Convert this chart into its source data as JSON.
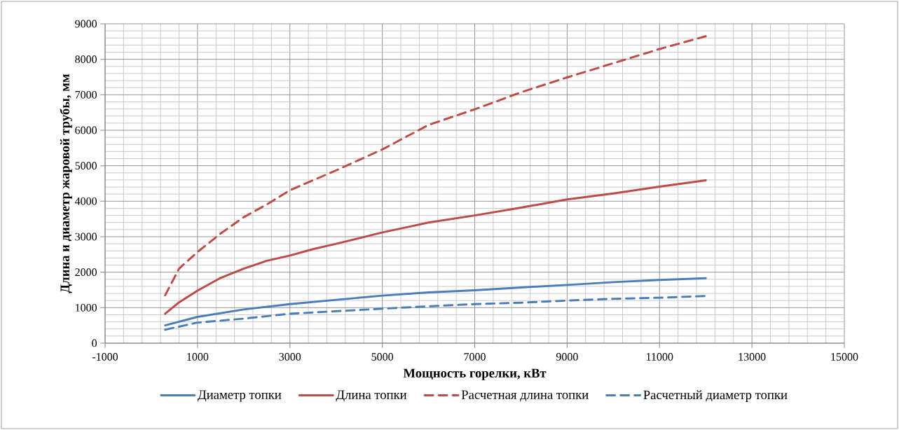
{
  "chart_data": {
    "type": "line",
    "xlabel": "Мощность горелки, кВт",
    "ylabel": "Длина и диаметр  жаровой трубы, мм",
    "x": [
      300,
      1000,
      2000,
      3000,
      4000,
      5000,
      6000,
      7000,
      8000,
      9000,
      10000,
      11000,
      12000
    ],
    "series": [
      {
        "name": "Диаметр топки",
        "color": "#4a7ebb",
        "line_style": "solid",
        "values": [
          500,
          740,
          950,
          1100,
          1220,
          1340,
          1430,
          1490,
          1570,
          1640,
          1720,
          1780,
          1830
        ]
      },
      {
        "name": "Длина топки",
        "color": "#be4b48",
        "line_style": "solid",
        "x": [
          300,
          600,
          1000,
          1500,
          2000,
          2500,
          3000,
          3500,
          4000,
          5000,
          5500,
          6000,
          7000,
          8000,
          9000,
          10000,
          11000,
          12000
        ],
        "values": [
          830,
          1150,
          1480,
          1840,
          2100,
          2320,
          2470,
          2650,
          2800,
          3120,
          3260,
          3400,
          3600,
          3820,
          4050,
          4220,
          4410,
          4590
        ]
      },
      {
        "name": "Расчетная длина топки",
        "color": "#be4b48",
        "line_style": "dashed",
        "x": [
          300,
          600,
          1000,
          1500,
          2000,
          2500,
          3000,
          4000,
          5000,
          6000,
          7000,
          8000,
          9000,
          10000,
          11000,
          12000
        ],
        "values": [
          1350,
          2100,
          2570,
          3090,
          3550,
          3910,
          4310,
          4870,
          5460,
          6150,
          6590,
          7070,
          7490,
          7890,
          8290,
          8650
        ]
      },
      {
        "name": "Расчетный диаметр топки",
        "color": "#4a7ebb",
        "line_style": "dashed",
        "values": [
          380,
          580,
          690,
          830,
          900,
          970,
          1040,
          1100,
          1140,
          1200,
          1250,
          1280,
          1330
        ]
      }
    ],
    "xlim": [
      -1000,
      15000
    ],
    "xticks": [
      -1000,
      1000,
      3000,
      5000,
      7000,
      9000,
      11000,
      13000,
      15000
    ],
    "ylim": [
      0,
      9000
    ],
    "yticks": [
      0,
      1000,
      2000,
      3000,
      4000,
      5000,
      6000,
      7000,
      8000,
      9000
    ],
    "grid": true,
    "legend": "bottom",
    "marker": "none"
  }
}
